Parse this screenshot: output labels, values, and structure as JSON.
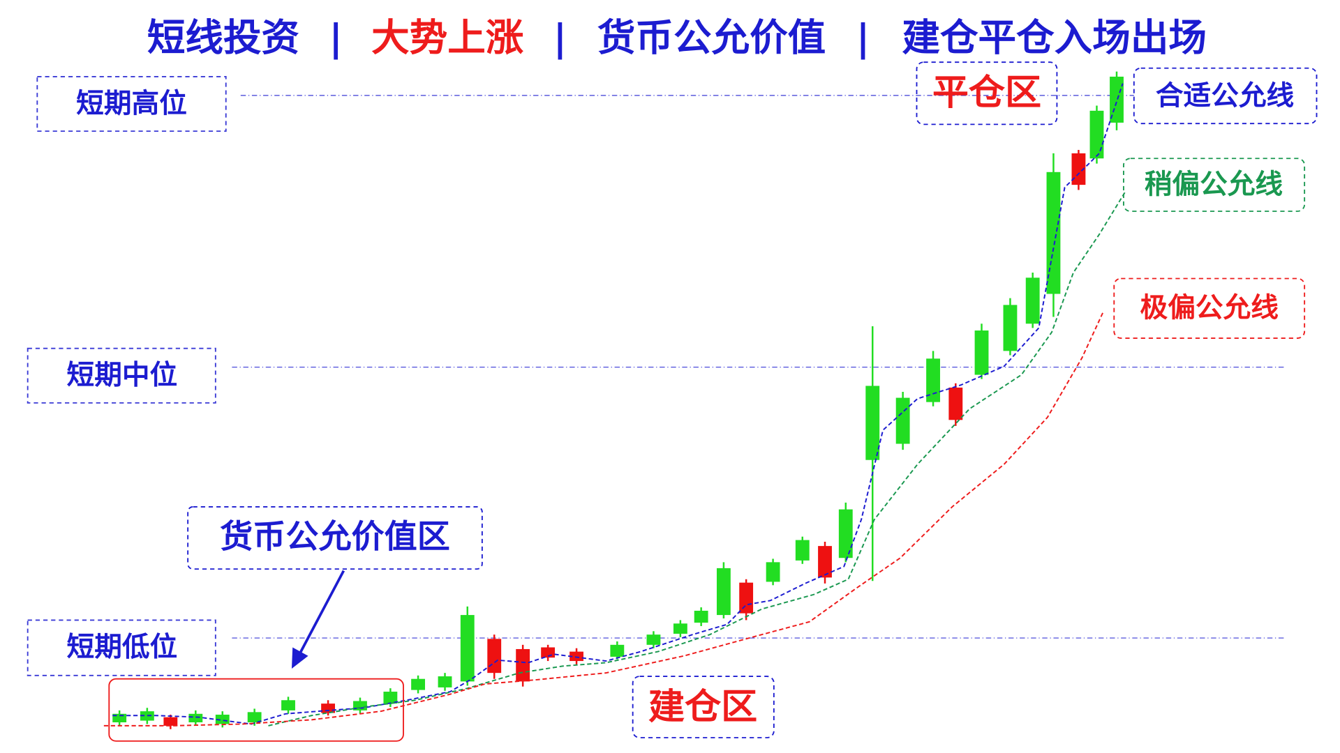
{
  "title": {
    "segments": [
      "短线投资",
      "大势上涨",
      "货币公允价值",
      "建仓平仓入场出场"
    ],
    "separator": "|"
  },
  "levels": {
    "high": "短期高位",
    "mid": "短期中位",
    "low": "短期低位"
  },
  "zones": {
    "fair_value": "货币公允价值区",
    "close": "平仓区",
    "open": "建仓区"
  },
  "lines": {
    "fit": "合适公允线",
    "slight": "稍偏公允线",
    "extreme": "极偏公允线"
  }
}
